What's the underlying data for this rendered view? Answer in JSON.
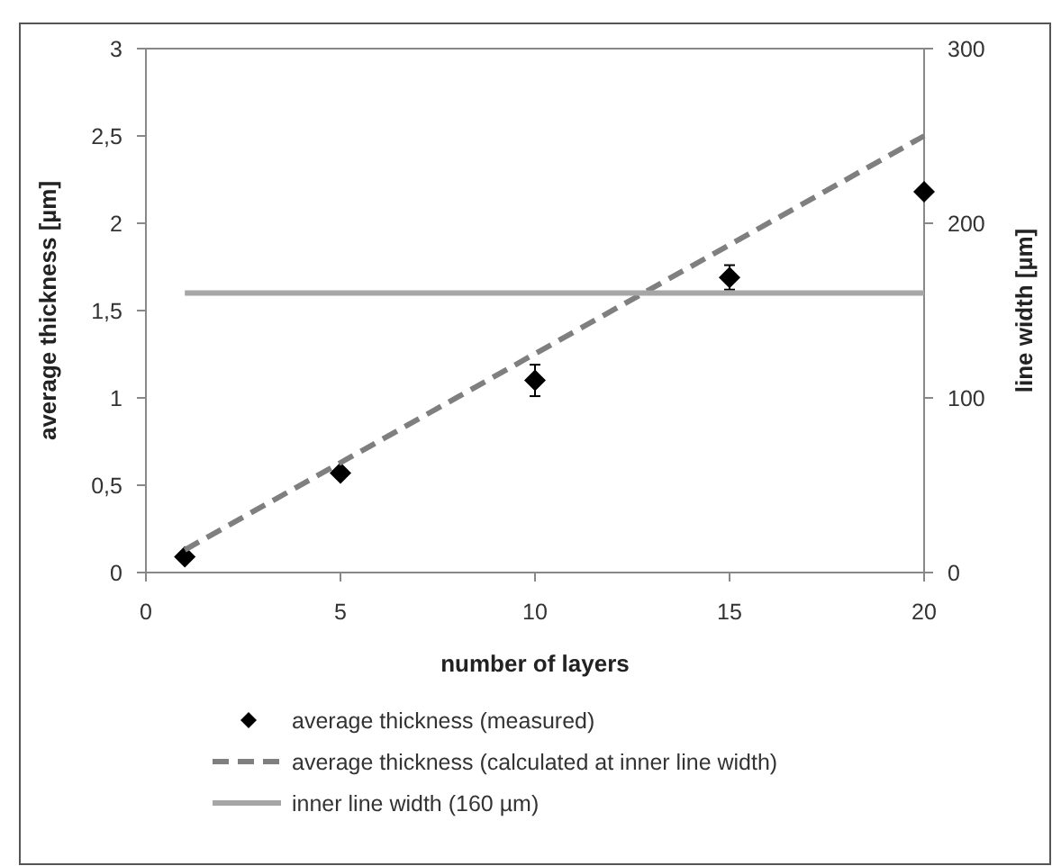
{
  "chart_data": {
    "type": "scatter",
    "xlabel": "number of layers",
    "ylabel": "average thickness [µm]",
    "y2label": "line width [µm]",
    "xlim": [
      0,
      20
    ],
    "xticks": [
      0,
      5,
      10,
      15,
      20
    ],
    "ylim": [
      0,
      3
    ],
    "yticks": [
      0,
      {
        "value": 0.5,
        "label": "0,5"
      },
      1,
      {
        "value": 1.5,
        "label": "1,5"
      },
      2,
      {
        "value": 2.5,
        "label": "2,5"
      },
      3
    ],
    "y2lim": [
      0,
      300
    ],
    "y2ticks": [
      0,
      100,
      200,
      300
    ],
    "legend": "bottom",
    "grid": false,
    "series": [
      {
        "name": "average thickness (measured)",
        "marker": "diamond",
        "color": "#000000",
        "x": [
          1,
          5,
          10,
          15,
          20
        ],
        "values": [
          0.09,
          0.57,
          1.1,
          1.69,
          2.18
        ],
        "errors": [
          null,
          null,
          0.09,
          0.07,
          null
        ]
      },
      {
        "name": "average thickness (calculated at inner line width)",
        "type": "line",
        "line_style": "dashed",
        "color": "#7f7f7f",
        "x": [
          1,
          20
        ],
        "values": [
          0.13,
          2.5
        ]
      },
      {
        "name": "inner line width (160 µm)",
        "type": "line",
        "line_style": "solid",
        "axis": "y2",
        "color": "#a6a6a6",
        "x": [
          1,
          20
        ],
        "values": [
          160,
          160
        ]
      }
    ]
  }
}
